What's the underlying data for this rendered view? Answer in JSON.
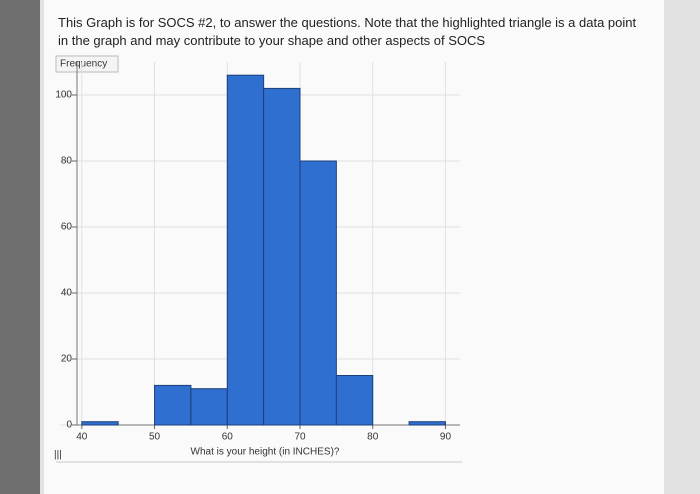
{
  "chart_data": {
    "type": "histogram",
    "title": "This Graph is for SOCS #2, to answer the questions. Note that the highlighted triangle is a data point in the graph and may contribute to your shape and other aspects of SOCS",
    "y_label": "Frequency",
    "x_label": "What is your height (in INCHES)?",
    "bins": [
      40,
      45,
      50,
      55,
      60,
      65,
      70,
      75,
      80,
      85,
      90
    ],
    "values": [
      1,
      0,
      12,
      11,
      106,
      102,
      80,
      15,
      0,
      1
    ],
    "color": "#2f6fcf",
    "xlim": [
      37,
      92
    ],
    "xticks": [
      40,
      50,
      60,
      70,
      80,
      90
    ],
    "ylim": [
      0,
      110
    ],
    "yticks": [
      0,
      20,
      40,
      60,
      80,
      100
    ],
    "grid": true
  }
}
